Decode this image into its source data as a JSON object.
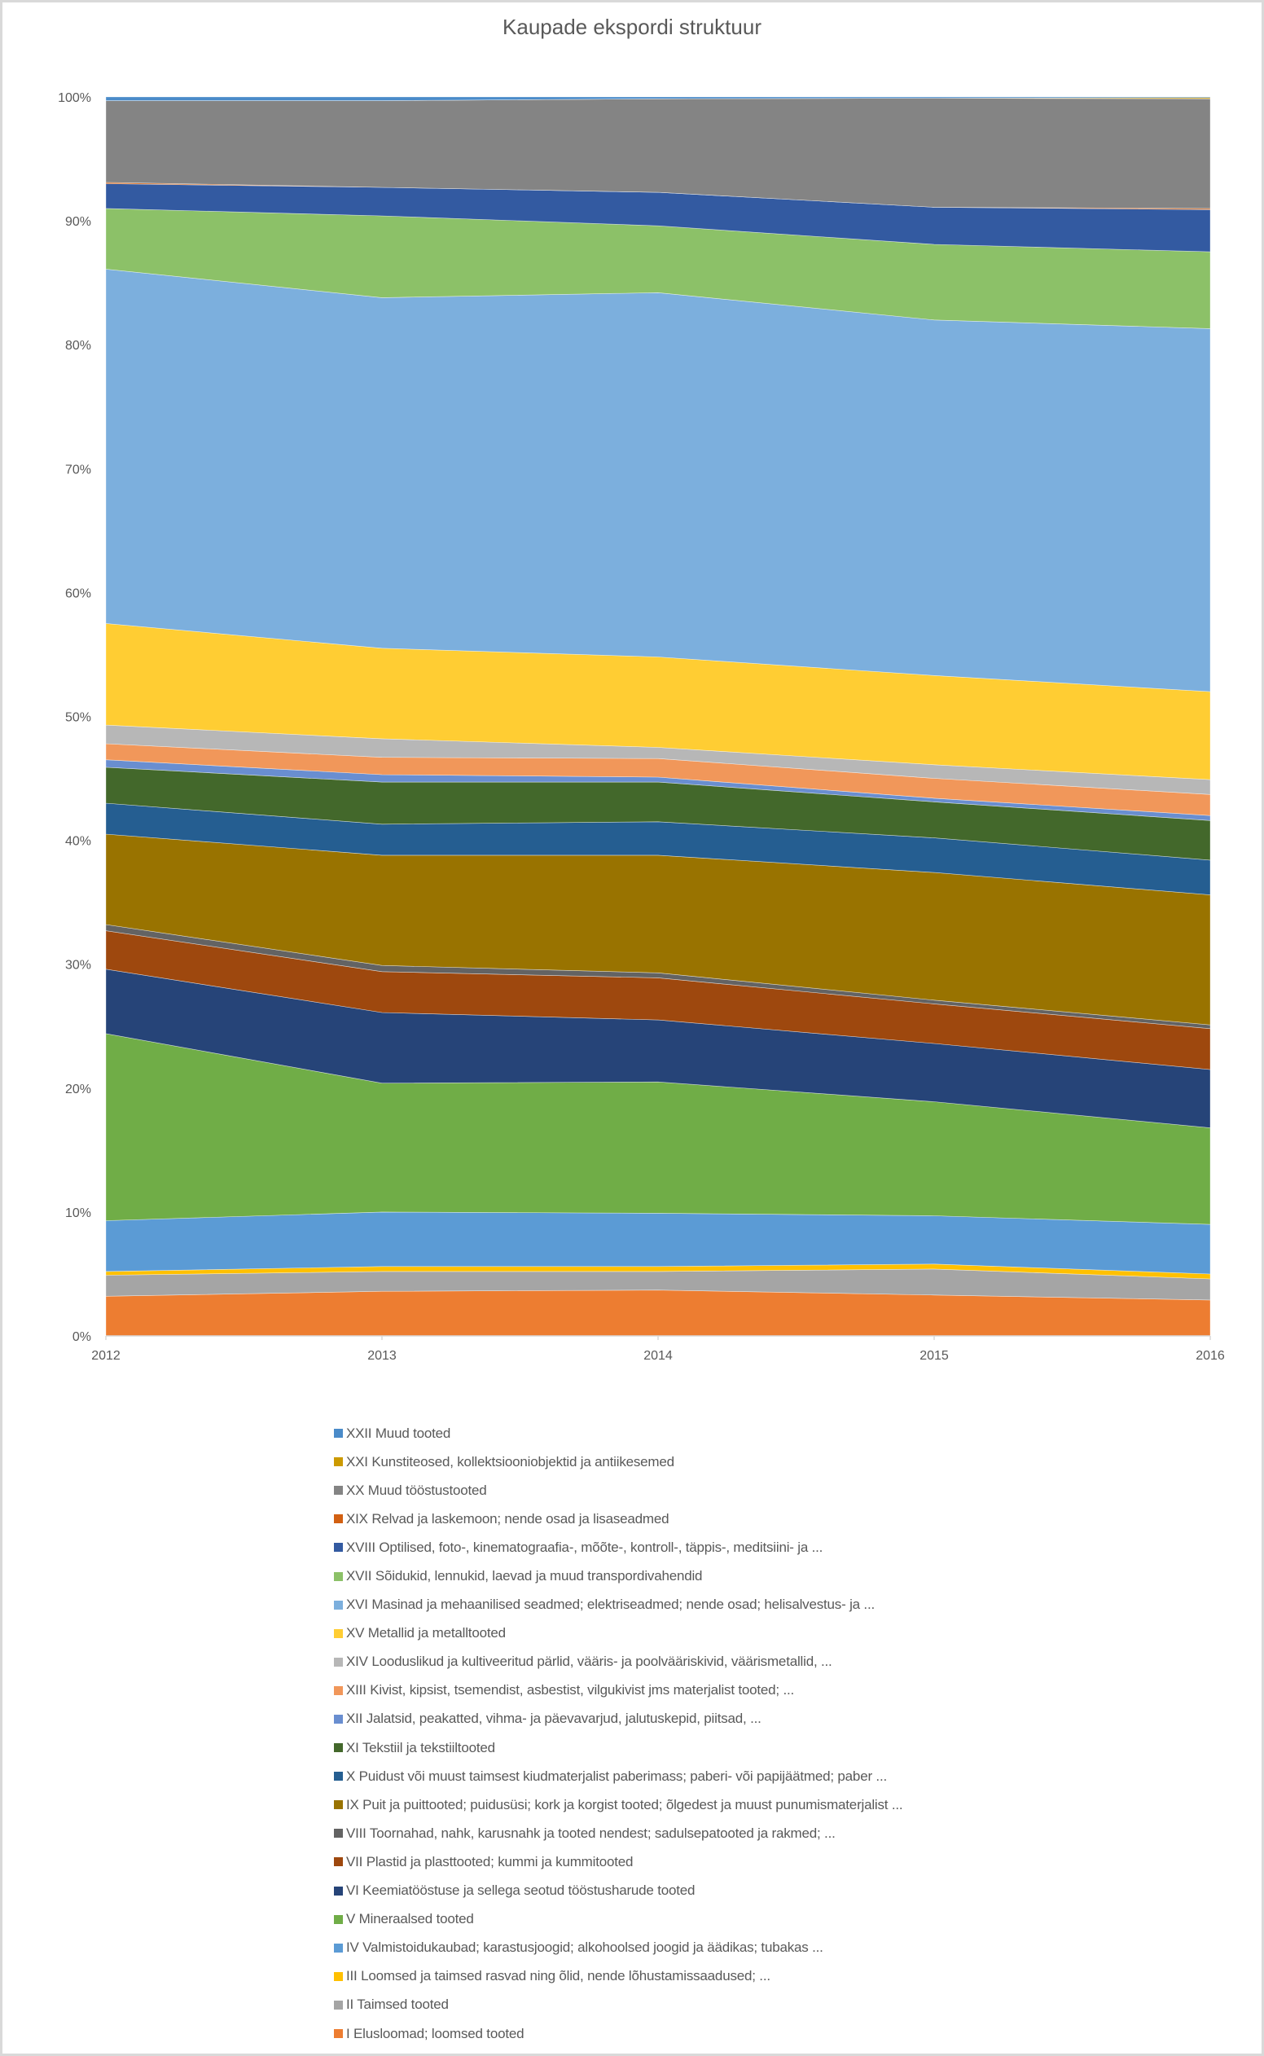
{
  "chart_data": {
    "type": "area",
    "stacking": "percent",
    "title": "Kaupade ekspordi struktuur",
    "xlabel": "",
    "ylabel": "",
    "categories": [
      "2012",
      "2013",
      "2014",
      "2015",
      "2016"
    ],
    "ylim": [
      0,
      100
    ],
    "yticks": [
      "0%",
      "10%",
      "20%",
      "30%",
      "40%",
      "50%",
      "60%",
      "70%",
      "80%",
      "90%",
      "100%"
    ],
    "grid": false,
    "legend_position": "bottom",
    "series": [
      {
        "name": "I Elusloomad; loomsed tooted",
        "color": "#ED7D31",
        "values": [
          3.2,
          3.6,
          3.7,
          3.3,
          2.9
        ]
      },
      {
        "name": "II Taimsed tooted",
        "color": "#A5A5A5",
        "values": [
          1.7,
          1.6,
          1.5,
          2.1,
          1.7
        ]
      },
      {
        "name": "III Loomsed ja taimsed rasvad ning õlid, nende lõhustamissaadused; ...",
        "color": "#FFC000",
        "values": [
          0.3,
          0.4,
          0.4,
          0.4,
          0.4
        ]
      },
      {
        "name": "IV Valmistoidukaubad; karastusjoogid; alkohoolsed joogid ja äädikas; tubakas ...",
        "color": "#5B9BD5",
        "values": [
          4.1,
          4.4,
          4.3,
          3.9,
          4.0
        ]
      },
      {
        "name": "V Mineraalsed tooted",
        "color": "#70AD47",
        "values": [
          15.1,
          10.4,
          10.6,
          9.2,
          7.8
        ]
      },
      {
        "name": "VI Keemiatööstuse ja sellega seotud tööstusharude tooted",
        "color": "#264478",
        "values": [
          5.2,
          5.7,
          5.0,
          4.7,
          4.7
        ]
      },
      {
        "name": "VII Plastid ja plasttooted; kummi ja kummitooted",
        "color": "#9E480E",
        "values": [
          3.1,
          3.3,
          3.4,
          3.2,
          3.3
        ]
      },
      {
        "name": "VIII Toornahad, nahk, karusnahk ja tooted nendest; sadulsepatooted ja rakmed; ...",
        "color": "#636363",
        "values": [
          0.5,
          0.5,
          0.4,
          0.3,
          0.3
        ]
      },
      {
        "name": "IX Puit ja puittooted; puidusüsi; kork ja korgist tooted; õlgedest ja muust punumismaterjalist ...",
        "color": "#997300",
        "values": [
          7.3,
          8.9,
          9.5,
          10.3,
          10.5
        ]
      },
      {
        "name": "X Puidust või muust taimsest kiudmaterjalist paberimass; paberi- või papijäätmed; paber ...",
        "color": "#255E91",
        "values": [
          2.5,
          2.5,
          2.7,
          2.8,
          2.8
        ]
      },
      {
        "name": "XI Tekstiil ja tekstiiltooted",
        "color": "#43682B",
        "values": [
          2.9,
          3.4,
          3.2,
          2.9,
          3.2
        ]
      },
      {
        "name": "XII Jalatsid, peakatted, vihma- ja päevavarjud, jalutuskepid, piitsad, ...",
        "color": "#698ED0",
        "values": [
          0.6,
          0.6,
          0.4,
          0.3,
          0.4
        ]
      },
      {
        "name": "XIII Kivist, kipsist, tsemendist, asbestist, vilgukivist jms materjalist tooted; ...",
        "color": "#F1975A",
        "values": [
          1.3,
          1.4,
          1.5,
          1.6,
          1.7
        ]
      },
      {
        "name": "XIV Looduslikud ja kultiveeritud pärlid, vääris- ja poolvääriskivid, väärismetallid, ...",
        "color": "#B7B7B7",
        "values": [
          1.5,
          1.5,
          0.9,
          1.1,
          1.2
        ]
      },
      {
        "name": "XV Metallid ja metalltooted",
        "color": "#FFCD33",
        "values": [
          8.2,
          7.3,
          7.3,
          7.2,
          7.1
        ]
      },
      {
        "name": "XVI Masinad ja mehaanilised seadmed; elektriseadmed; nende osad; helisalvestus- ja ...",
        "color": "#7CAFDD",
        "values": [
          28.6,
          28.3,
          29.4,
          28.7,
          29.3
        ]
      },
      {
        "name": "XVII Sõidukid, lennukid, laevad ja muud transpordivahendid",
        "color": "#8CC168",
        "values": [
          4.9,
          6.6,
          5.4,
          6.1,
          6.2
        ]
      },
      {
        "name": "XVIII Optilised, foto-, kinematograafia-, mõõte-, kontroll-, täppis-, meditsiini- ja ...",
        "color": "#335AA1",
        "values": [
          2.0,
          2.3,
          2.7,
          3.0,
          3.4
        ]
      },
      {
        "name": "XIX Relvad ja laskemoon; nende osad ja lisaseadmed",
        "color": "#D26012",
        "values": [
          0.1,
          0.0,
          0.0,
          0.0,
          0.1
        ]
      },
      {
        "name": "XX Muud tööstustooted",
        "color": "#848484",
        "values": [
          6.6,
          7.0,
          7.55,
          8.8,
          8.85
        ]
      },
      {
        "name": "XXI Kunstiteosed, kollektsiooniobjektid ja antiikesemed",
        "color": "#CC9A00",
        "values": [
          0.0,
          0.0,
          0.0,
          0.0,
          0.1
        ]
      },
      {
        "name": "XXII Muud tooted",
        "color": "#4A8BC9",
        "values": [
          0.3,
          0.3,
          0.15,
          0.1,
          0.05
        ]
      }
    ]
  }
}
